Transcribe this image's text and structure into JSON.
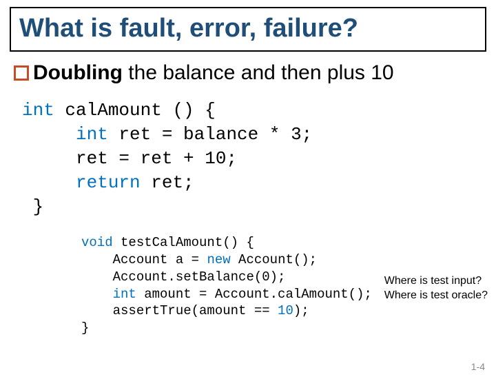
{
  "title": "What is fault, error, failure?",
  "subtitle_bold": "Doubling",
  "subtitle_rest": " the balance and then plus 10",
  "code1": {
    "l1a": "int",
    "l1b": " calAmount () {",
    "l2a": "     int",
    "l2b": " ret = balance * 3;",
    "l3": "     ret = ret + 10;",
    "l4a": "     return",
    "l4b": " ret;",
    "l5": " }"
  },
  "code2": {
    "l1a": "void",
    "l1b": " testCalAmount() {",
    "l2a": "    Account a = ",
    "l2b": "new",
    "l2c": " Account();",
    "l3": "    Account.setBalance(0);",
    "l4a": "    int",
    "l4b": " amount = Account.calAmount();",
    "l5a": "    assertTrue(amount == ",
    "l5b": "10",
    "l5c": ");",
    "l6": "}"
  },
  "annotation_l1": "Where is test input?",
  "annotation_l2": "Where is test oracle?",
  "page_number": "1-4",
  "colors": {
    "title": "#1f4e79",
    "bullet_border": "#c44d28",
    "keyword": "#0070c0",
    "page_num": "#888888"
  }
}
